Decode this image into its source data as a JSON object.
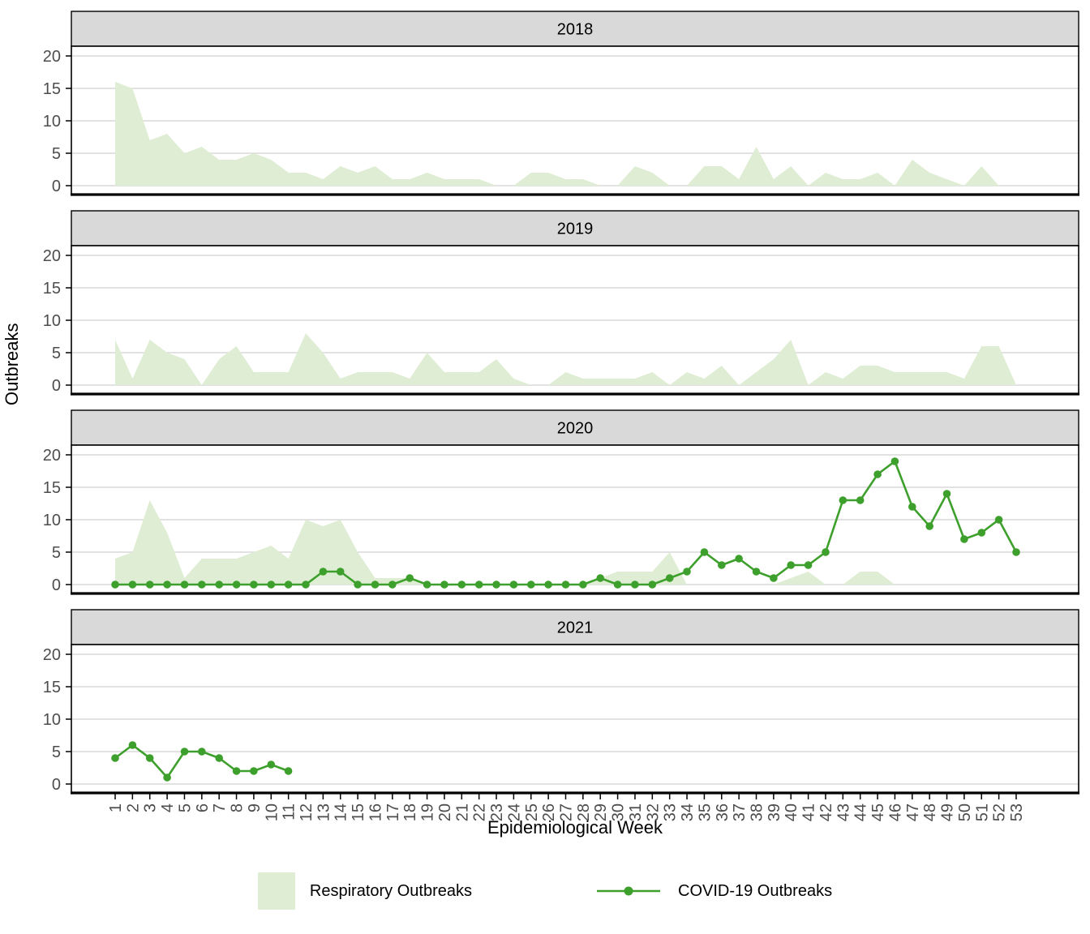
{
  "chart_data": {
    "type": "area+line faceted by year",
    "xlabel": "Epidemiological Week",
    "ylabel": "Outbreaks",
    "x": [
      1,
      2,
      3,
      4,
      5,
      6,
      7,
      8,
      9,
      10,
      11,
      12,
      13,
      14,
      15,
      16,
      17,
      18,
      19,
      20,
      21,
      22,
      23,
      24,
      25,
      26,
      27,
      28,
      29,
      30,
      31,
      32,
      33,
      34,
      35,
      36,
      37,
      38,
      39,
      40,
      41,
      42,
      43,
      44,
      45,
      46,
      47,
      48,
      49,
      50,
      51,
      52,
      53
    ],
    "y_ticks": [
      0,
      5,
      10,
      15,
      20
    ],
    "ylim": [
      -1.4,
      21.5
    ],
    "grid": "horizontal major only",
    "legend_position": "bottom",
    "facets": [
      {
        "year": "2018",
        "series": [
          {
            "name": "Respiratory Outbreaks",
            "type": "area",
            "values": [
              16,
              15,
              7,
              8,
              5,
              6,
              4,
              4,
              5,
              4,
              2,
              2,
              1,
              3,
              2,
              3,
              1,
              1,
              2,
              1,
              1,
              1,
              0,
              0,
              2,
              2,
              1,
              1,
              0,
              0,
              3,
              2,
              0,
              0,
              3,
              3,
              1,
              6,
              1,
              3,
              0,
              2,
              1,
              1,
              2,
              0,
              4,
              2,
              1,
              0,
              3,
              0,
              0
            ]
          }
        ]
      },
      {
        "year": "2019",
        "series": [
          {
            "name": "Respiratory Outbreaks",
            "type": "area",
            "values": [
              7,
              1,
              7,
              5,
              4,
              0,
              4,
              6,
              2,
              2,
              2,
              8,
              5,
              1,
              2,
              2,
              2,
              1,
              5,
              2,
              2,
              2,
              4,
              1,
              0,
              0,
              2,
              1,
              1,
              1,
              1,
              2,
              0,
              2,
              1,
              3,
              0,
              2,
              4,
              7,
              0,
              2,
              1,
              3,
              3,
              2,
              2,
              2,
              2,
              1,
              6,
              6,
              0
            ]
          }
        ]
      },
      {
        "year": "2020",
        "series": [
          {
            "name": "Respiratory Outbreaks",
            "type": "area",
            "values": [
              4,
              5,
              13,
              8,
              1,
              4,
              4,
              4,
              5,
              6,
              4,
              10,
              9,
              10,
              5,
              1,
              1,
              1,
              0,
              0,
              0,
              0,
              0,
              0,
              0,
              0,
              0,
              0,
              1,
              2,
              2,
              2,
              5,
              0,
              0,
              0,
              0,
              0,
              0,
              1,
              2,
              0,
              0,
              2,
              2,
              0,
              0,
              0,
              0,
              0,
              0,
              0,
              0
            ]
          },
          {
            "name": "COVID-19 Outbreaks",
            "type": "line",
            "values": [
              0,
              0,
              0,
              0,
              0,
              0,
              0,
              0,
              0,
              0,
              0,
              0,
              2,
              2,
              0,
              0,
              0,
              1,
              0,
              0,
              0,
              0,
              0,
              0,
              0,
              0,
              0,
              0,
              1,
              0,
              0,
              0,
              1,
              2,
              5,
              3,
              4,
              2,
              1,
              3,
              3,
              5,
              13,
              13,
              17,
              19,
              12,
              9,
              14,
              7,
              8,
              10,
              5
            ]
          }
        ]
      },
      {
        "year": "2021",
        "series": [
          {
            "name": "COVID-19 Outbreaks",
            "type": "line",
            "values": [
              4,
              6,
              4,
              1,
              5,
              5,
              4,
              2,
              2,
              3,
              2
            ]
          }
        ]
      }
    ],
    "legend": [
      {
        "label": "Respiratory Outbreaks",
        "swatch": "area-square",
        "color": "#deedd3"
      },
      {
        "label": "COVID-19 Outbreaks",
        "swatch": "line-with-point",
        "color": "#3ea02c"
      }
    ]
  },
  "colors": {
    "area_fill": "#deedd3",
    "line_green": "#3ea02c",
    "strip_bg": "#d9d9d9",
    "strip_text": "#000000",
    "gridline": "#d9d9d9",
    "tick_text": "#4d4d4d",
    "panel_border": "#000000",
    "background": "#ffffff"
  }
}
